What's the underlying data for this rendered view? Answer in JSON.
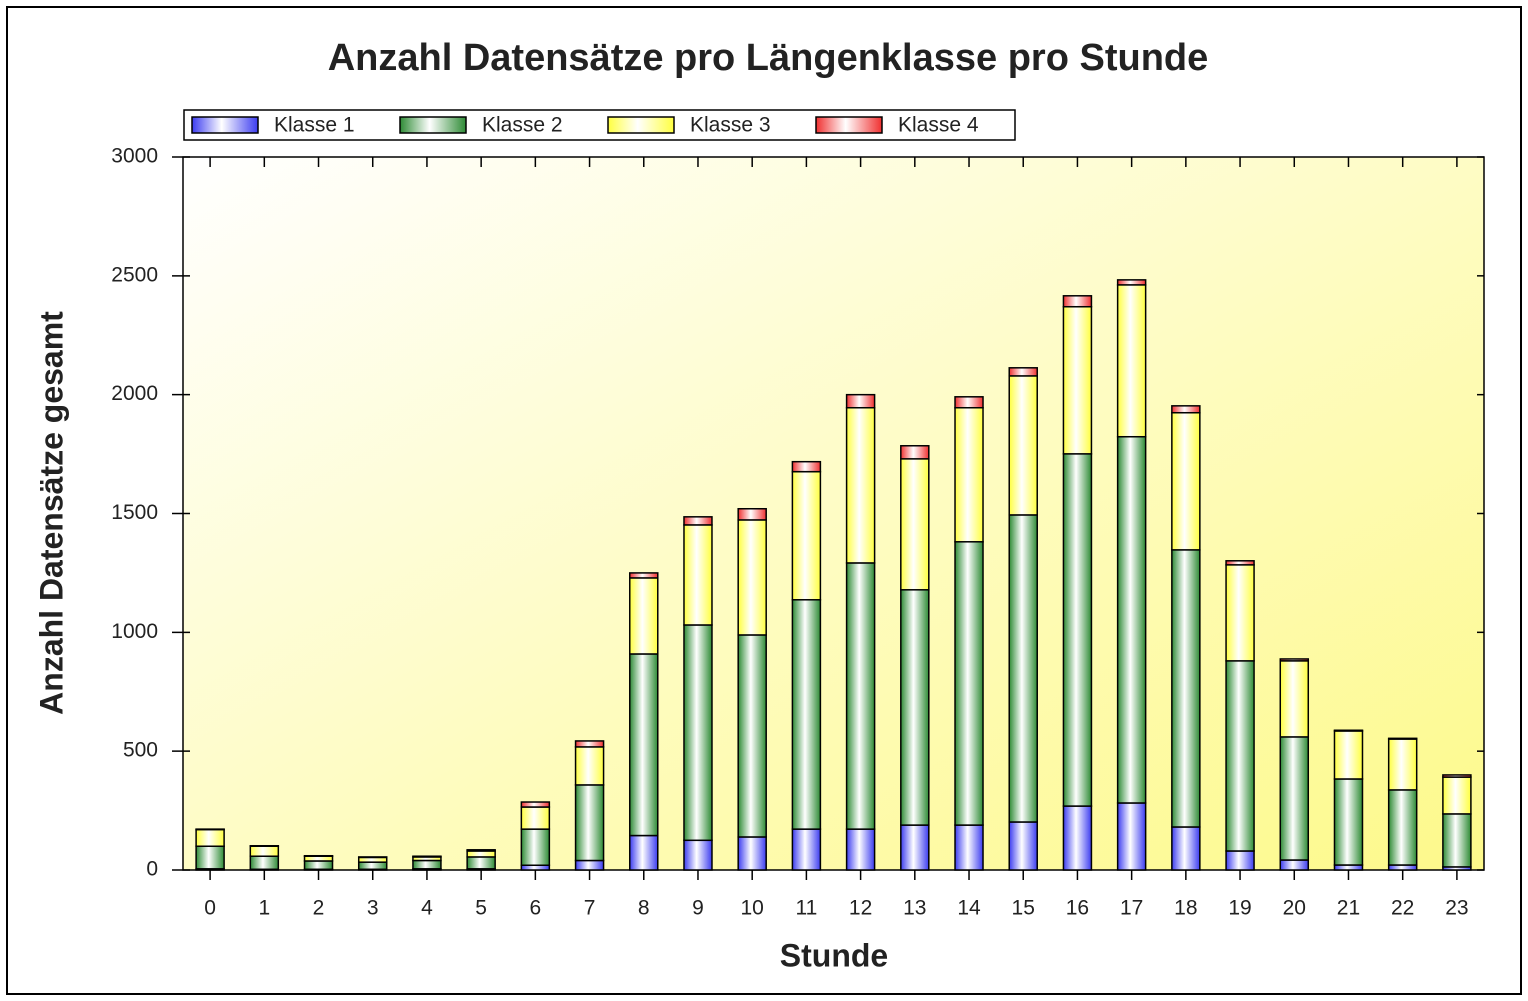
{
  "chart_data": {
    "type": "bar",
    "stacked": true,
    "title": "Anzahl Datensätze pro Längenklasse pro Stunde",
    "x_label": "Stunde",
    "y_label": "Anzahl Datensätze gesamt",
    "categories": [
      "0",
      "1",
      "2",
      "3",
      "4",
      "5",
      "6",
      "7",
      "8",
      "9",
      "10",
      "11",
      "12",
      "13",
      "14",
      "15",
      "16",
      "17",
      "18",
      "19",
      "20",
      "21",
      "22",
      "23"
    ],
    "series": [
      {
        "name": "Klasse 1",
        "color": "#3c3cf0",
        "values": [
          5,
          3,
          3,
          3,
          5,
          5,
          20,
          40,
          145,
          125,
          139,
          172,
          172,
          189,
          189,
          202,
          269,
          282,
          181,
          80,
          42,
          21,
          21,
          13
        ]
      },
      {
        "name": "Klasse 2",
        "color": "#2e8b35",
        "values": [
          95,
          55,
          35,
          30,
          35,
          50,
          152,
          318,
          764,
          906,
          850,
          965,
          1120,
          990,
          1192,
          1292,
          1482,
          1541,
          1166,
          800,
          518,
          362,
          316,
          223
        ]
      },
      {
        "name": "Klasse 3",
        "color": "#ffff40",
        "values": [
          70,
          42,
          20,
          20,
          15,
          25,
          93,
          160,
          320,
          421,
          484,
          539,
          653,
          551,
          564,
          585,
          619,
          639,
          577,
          404,
          320,
          202,
          214,
          155
        ]
      },
      {
        "name": "Klasse 4",
        "color": "#f03030",
        "values": [
          2,
          2,
          2,
          2,
          3,
          5,
          21,
          25,
          21,
          34,
          47,
          42,
          55,
          55,
          46,
          34,
          46,
          21,
          29,
          17,
          8,
          3,
          3,
          9
        ]
      }
    ],
    "ylim": [
      0,
      3000
    ],
    "yticks": [
      0,
      500,
      1000,
      1500,
      2000,
      2500,
      3000
    ],
    "legend": "top-left"
  }
}
